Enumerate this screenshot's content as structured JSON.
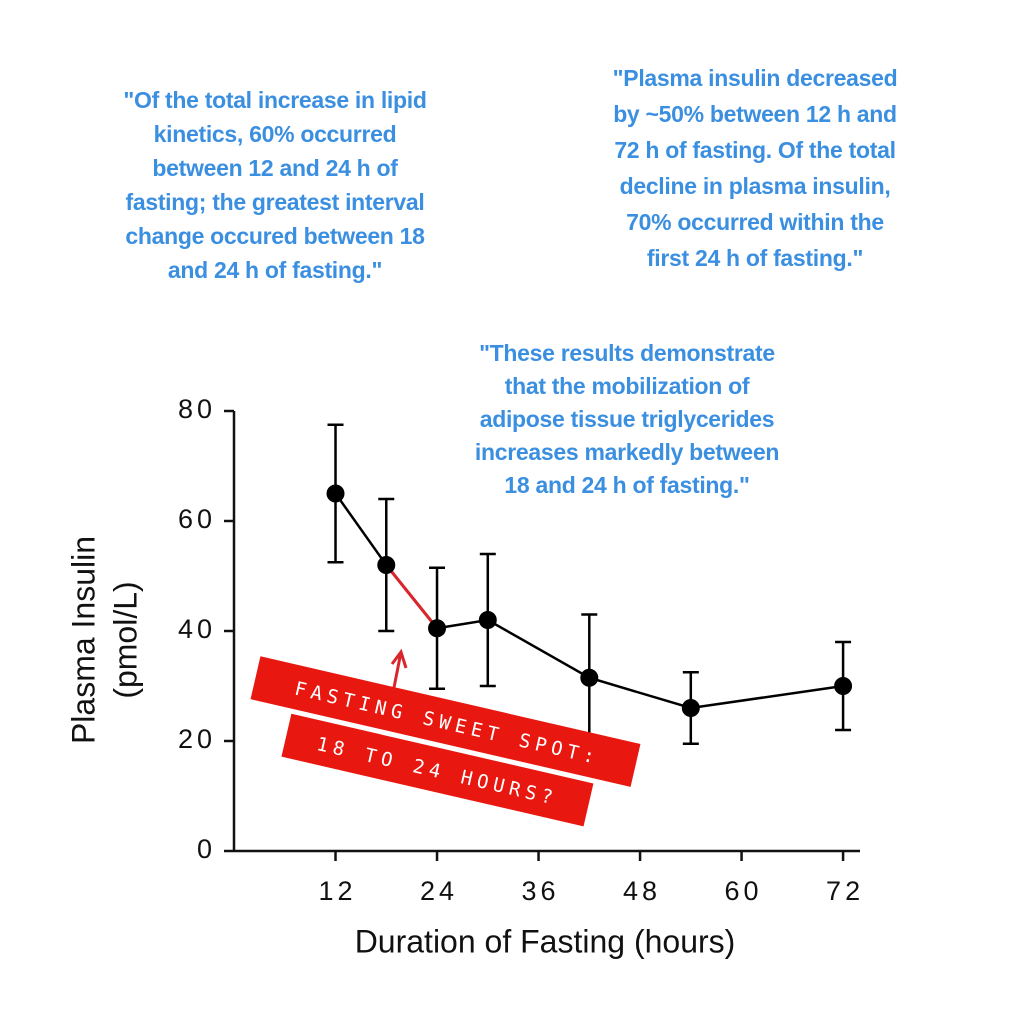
{
  "chart_data": {
    "type": "line",
    "x": [
      12,
      18,
      24,
      30,
      42,
      54,
      72
    ],
    "series": [
      {
        "color": "#000000",
        "values": [
          65,
          52,
          40.5,
          42,
          31.5,
          26,
          30
        ],
        "errors": [
          12.5,
          12,
          11,
          12,
          11.5,
          6.5,
          8
        ]
      }
    ],
    "xlim": [
      0,
      74
    ],
    "ylim": [
      0,
      80
    ],
    "xticks": [
      12,
      24,
      36,
      48,
      60,
      72
    ],
    "yticks": [
      0,
      20,
      40,
      60,
      80
    ],
    "xlabel": "Duration of Fasting (hours)",
    "ylabel": [
      "Plasma  Insulin",
      "(pmol/L)"
    ],
    "highlight_color": "#d9262c",
    "annotations": [
      [
        "\"Of the total increase in lipid",
        "kinetics, 60% occurred",
        "between 12 and 24 h of",
        "fasting; the greatest interval",
        "change occured between 18",
        "and 24 h of fasting.\""
      ],
      [
        "\"Plasma insulin decreased",
        "by ~50% between 12 h and",
        "72 h of fasting. Of the total",
        "decline in plasma insulin,",
        "70% occurred within the",
        "first 24 h of fasting.\""
      ],
      [
        "\"These results demonstrate",
        "that the mobilization of",
        "adipose tissue triglycerides",
        "increases markedly between",
        "18 and 24 h of fasting.\""
      ]
    ],
    "callout": [
      "FASTING SWEET SPOT:",
      "18 TO 24 HOURS?"
    ]
  }
}
